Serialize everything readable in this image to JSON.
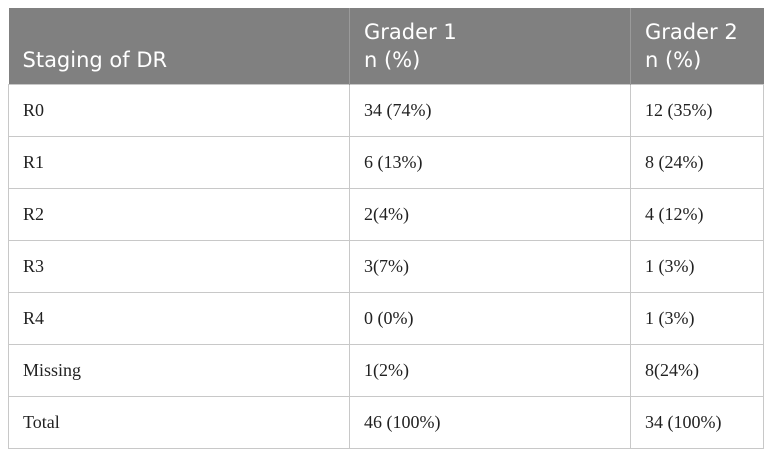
{
  "table": {
    "headers": [
      {
        "lines": [
          "Staging of DR"
        ]
      },
      {
        "lines": [
          "Grader 1",
          "n (%)"
        ]
      },
      {
        "lines": [
          "Grader 2",
          "n (%)"
        ]
      }
    ],
    "rows": [
      [
        "R0",
        "34 (74%)",
        "12 (35%)"
      ],
      [
        "R1",
        "6 (13%)",
        "8 (24%)"
      ],
      [
        "R2",
        "2(4%)",
        "4 (12%)"
      ],
      [
        "R3",
        "3(7%)",
        "1 (3%)"
      ],
      [
        "R4",
        "0 (0%)",
        "1 (3%)"
      ],
      [
        "Missing",
        "1(2%)",
        "8(24%)"
      ],
      [
        "Total",
        "46 (100%)",
        "34 (100%)"
      ]
    ]
  }
}
